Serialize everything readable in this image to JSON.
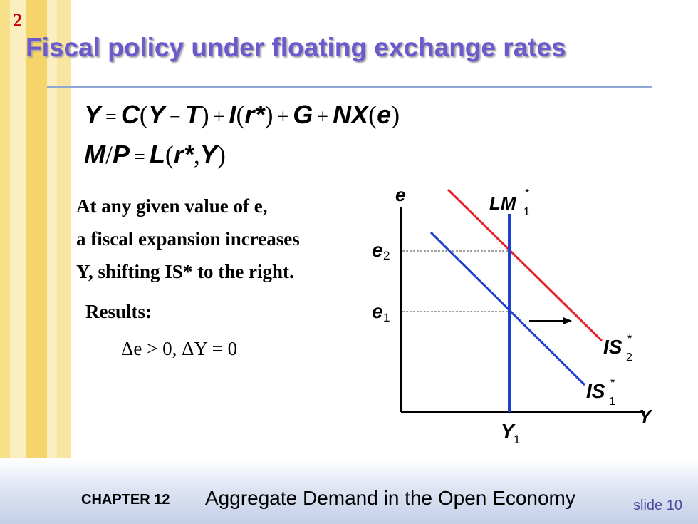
{
  "slide_number": "2",
  "title": "Fiscal policy under floating exchange rates",
  "equations": {
    "eq1": {
      "Y": "Y",
      "eq": "=",
      "C": "C",
      "lp1": "(",
      "Y2": "Y",
      "minus": "−",
      "T": "T",
      "rp1": ")",
      "plus1": "+",
      "I": "I",
      "lp2": "(",
      "rstar": "r*",
      "rp2": ")",
      "plus2": "+",
      "G": "G",
      "plus3": "+",
      "NX": "NX",
      "lp3": "(",
      "e": "e",
      "rp3": ")"
    },
    "eq2": {
      "M": "M",
      "slash": "/",
      "P": "P",
      "eq": "=",
      "L": "L",
      "lp": "(",
      "rstar": "r*",
      "comma": ",",
      "Y": "Y",
      "rp": ")"
    }
  },
  "body": {
    "line1": "At any given value of e,",
    "line2": "a fiscal expansion increases",
    "line3": "Y, shifting IS* to the right.",
    "results_label": "Results:",
    "results": "Δe > 0,  ΔY = 0"
  },
  "diagram": {
    "y_axis_label": "e",
    "x_axis_label": "Y",
    "lm_label": "LM",
    "lm_sub": "1",
    "star": "*",
    "is1_label": "IS",
    "is1_sub": "1",
    "is2_label": "IS",
    "is2_sub": "2",
    "e2_label": "e",
    "e2_sub": "2",
    "e1_label": "e",
    "e1_sub": "1",
    "y1_label": "Y",
    "y1_sub": "1",
    "colors": {
      "is1": "#1f3fcf",
      "is2": "#e8202a",
      "lm": "#1f3fcf",
      "axes": "#000000"
    }
  },
  "footer": {
    "chapter": "CHAPTER 12",
    "chapter_title": "Aggregate Demand in the Open Economy",
    "slide_label": "slide 10"
  }
}
